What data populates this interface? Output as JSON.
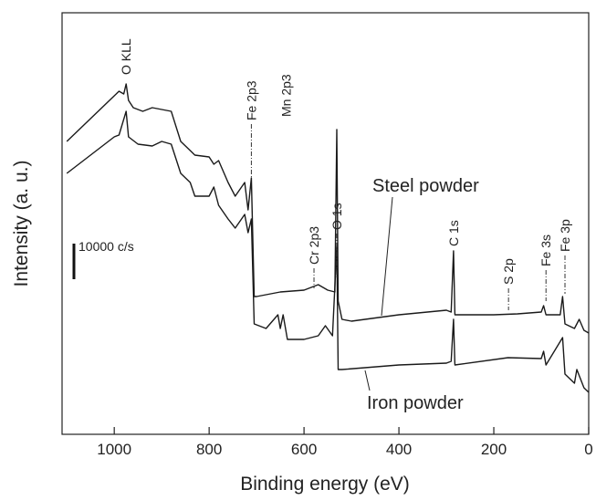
{
  "chart_data": {
    "type": "line",
    "x_label": "Binding energy (eV)",
    "y_label": "Intensity (a. u.)",
    "xlim": [
      1110,
      0
    ],
    "ylim": [
      0,
      462
    ],
    "xticks": [
      1000,
      800,
      600,
      400,
      200,
      0
    ],
    "scale_bar": "10000 c/s",
    "series": [
      {
        "name": "Steel powder",
        "color": "#1a1a1a",
        "x": [
          1100,
          1050,
          1010,
          990,
          980,
          975,
          970,
          960,
          940,
          920,
          900,
          880,
          860,
          850,
          840,
          830,
          800,
          790,
          780,
          760,
          745,
          725,
          718,
          711,
          705,
          700,
          650,
          600,
          570,
          550,
          535,
          531,
          528,
          520,
          500,
          400,
          300,
          290,
          285,
          282,
          250,
          200,
          150,
          100,
          95,
          90,
          60,
          55,
          50,
          30,
          20,
          10,
          0
        ],
        "values": [
          321,
          346,
          366,
          376,
          373,
          384,
          366,
          358,
          354,
          358,
          356,
          354,
          321,
          316,
          311,
          306,
          304,
          296,
          300,
          276,
          261,
          276,
          246,
          281,
          151,
          151,
          156,
          158,
          164,
          158,
          156,
          334,
          146,
          126,
          124,
          131,
          136,
          134,
          201,
          131,
          131,
          131,
          132,
          134,
          141,
          131,
          131,
          151,
          121,
          116,
          126,
          114,
          111
        ]
      },
      {
        "name": "Iron powder",
        "color": "#1a1a1a",
        "x": [
          1100,
          1050,
          1000,
          990,
          975,
          970,
          950,
          920,
          900,
          880,
          860,
          840,
          830,
          800,
          790,
          780,
          760,
          745,
          725,
          718,
          711,
          705,
          680,
          655,
          650,
          644,
          635,
          600,
          570,
          555,
          540,
          531,
          528,
          520,
          400,
          300,
          290,
          285,
          282,
          170,
          100,
          95,
          90,
          55,
          50,
          30,
          25,
          10,
          0
        ],
        "values": [
          286,
          306,
          326,
          328,
          354,
          326,
          318,
          316,
          321,
          318,
          286,
          276,
          261,
          261,
          271,
          251,
          236,
          226,
          241,
          221,
          236,
          121,
          116,
          131,
          116,
          131,
          104,
          104,
          108,
          119,
          108,
          206,
          71,
          71,
          76,
          78,
          80,
          126,
          76,
          84,
          83,
          91,
          76,
          106,
          66,
          56,
          71,
          51,
          46
        ]
      }
    ],
    "annotations": [
      {
        "text": "O KLL",
        "x": 975
      },
      {
        "text": "Fe 2p3",
        "x": 711
      },
      {
        "text": "Mn 2p3",
        "x": 638
      },
      {
        "text": "Cr 2p3",
        "x": 579
      },
      {
        "text": "O 1s",
        "x": 531
      },
      {
        "text": "C 1s",
        "x": 285
      },
      {
        "text": "S 2p",
        "x": 169
      },
      {
        "text": "Fe 3s",
        "x": 90
      },
      {
        "text": "Fe 3p",
        "x": 50
      }
    ]
  }
}
